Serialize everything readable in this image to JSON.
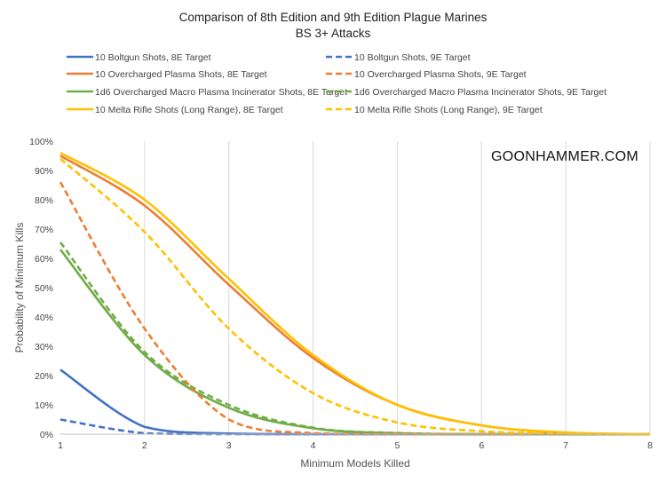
{
  "chart_data": {
    "type": "line",
    "title": "Comparison of 8th Edition and 9th Edition Plague Marines",
    "subtitle": "BS 3+ Attacks",
    "xlabel": "Minimum Models Killed",
    "ylabel": "Probability of Minimum Kills",
    "watermark": "GOONHAMMER.COM",
    "xlim": [
      1,
      8
    ],
    "ylim": [
      0,
      100
    ],
    "x_ticks": [
      "1",
      "2",
      "3",
      "4",
      "5",
      "6",
      "7",
      "8"
    ],
    "y_ticks": [
      "0%",
      "10%",
      "20%",
      "30%",
      "40%",
      "50%",
      "60%",
      "70%",
      "80%",
      "90%",
      "100%"
    ],
    "grid": "vertical",
    "legend_position": "top",
    "x": [
      1,
      2,
      3,
      4,
      5,
      6,
      7,
      8
    ],
    "series": [
      {
        "name": "10 Boltgun Shots, 8E Target",
        "color": "#4472C4",
        "dash": false,
        "values": [
          22,
          2.5,
          0.2,
          0,
          0,
          0,
          0,
          0
        ]
      },
      {
        "name": "10 Boltgun Shots, 9E Target",
        "color": "#4472C4",
        "dash": true,
        "values": [
          5,
          0.3,
          0,
          0,
          0,
          0,
          0,
          0
        ]
      },
      {
        "name": "10 Overcharged Plasma Shots, 8E Target",
        "color": "#ED7D31",
        "dash": false,
        "values": [
          95,
          78,
          51,
          26,
          10,
          3,
          0.5,
          0
        ]
      },
      {
        "name": "10 Overcharged Plasma Shots, 9E Target",
        "color": "#ED7D31",
        "dash": true,
        "values": [
          86,
          36,
          5,
          0.3,
          0,
          0,
          0,
          0
        ]
      },
      {
        "name": "1d6 Overcharged Macro Plasma Incinerator Shots, 8E Target",
        "color": "#70AD47",
        "dash": false,
        "values": [
          63,
          27,
          9,
          2,
          0.3,
          0,
          0,
          0
        ]
      },
      {
        "name": "1d6 Overcharged Macro Plasma Incinerator Shots, 9E Target",
        "color": "#70AD47",
        "dash": true,
        "values": [
          65.5,
          28,
          10,
          2.2,
          0.4,
          0,
          0,
          0
        ]
      },
      {
        "name": "10 Melta Rifle Shots (Long Range), 8E Target",
        "color": "#FFC000",
        "dash": false,
        "values": [
          96,
          80,
          53,
          27,
          10,
          3,
          0.6,
          0
        ]
      },
      {
        "name": "10 Melta Rifle Shots (Long Range), 9E Target",
        "color": "#FFC000",
        "dash": true,
        "values": [
          94,
          69,
          36,
          14,
          4,
          1,
          0.2,
          0
        ]
      }
    ]
  }
}
